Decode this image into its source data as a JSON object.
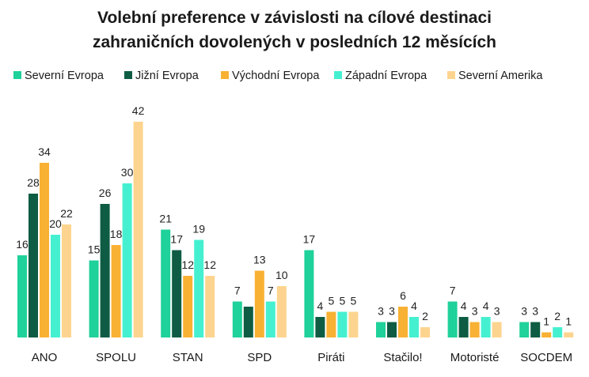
{
  "chart_data": {
    "type": "bar",
    "title_line1": "Volební preference v závislosti na cílové destinaci",
    "title_line2": "zahraničních dovolených v posledních 12 měsících",
    "xlabel": "",
    "ylabel": "",
    "ylim": [
      0,
      45
    ],
    "grid": false,
    "legend_position": "top",
    "categories": [
      "ANO",
      "SPOLU",
      "STAN",
      "SPD",
      "Piráti",
      "Stačilo!",
      "Motoristé",
      "SOCDEM"
    ],
    "series": [
      {
        "name": "Severní Evropa",
        "color": "#1fd19a",
        "values": [
          16,
          15,
          21,
          7,
          17,
          3,
          7,
          3
        ]
      },
      {
        "name": "Jižní Evropa",
        "color": "#0d5c43",
        "values": [
          28,
          26,
          17,
          6,
          4,
          3,
          4,
          3
        ]
      },
      {
        "name": "Východní Evropa",
        "color": "#f8b133",
        "values": [
          34,
          18,
          12,
          13,
          5,
          6,
          3,
          1
        ]
      },
      {
        "name": "Západní Evropa",
        "color": "#45f0d0",
        "values": [
          20,
          30,
          19,
          7,
          5,
          4,
          4,
          2
        ]
      },
      {
        "name": "Severní Amerika",
        "color": "#fdd48f",
        "values": [
          22,
          42,
          12,
          10,
          5,
          2,
          3,
          1
        ]
      }
    ],
    "data_labels": [
      [
        "16",
        "28",
        "34",
        "20",
        "22"
      ],
      [
        "15",
        "26",
        "18",
        "30",
        "42"
      ],
      [
        "21",
        "17",
        "12",
        "19",
        "12"
      ],
      [
        "7",
        "",
        "13",
        "7",
        "10"
      ],
      [
        "17",
        "4",
        "5",
        "5",
        "5"
      ],
      [
        "3",
        "3",
        "6",
        "4",
        "2"
      ],
      [
        "7",
        "4",
        "3",
        "4",
        "3"
      ],
      [
        "3",
        "3",
        "1",
        "2",
        "1"
      ]
    ]
  }
}
